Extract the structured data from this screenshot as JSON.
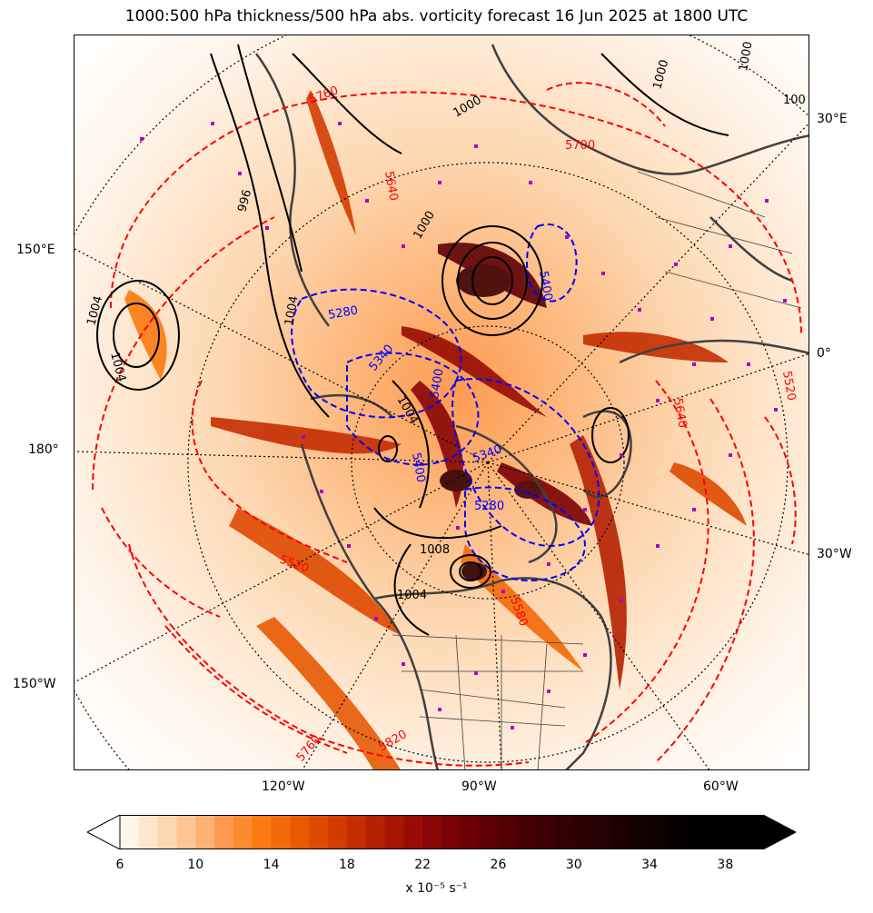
{
  "title": "1000:500 hPa thickness/500 hPa abs. vorticity forecast 16 Jun 2025 at 1800 UTC",
  "map": {
    "projection": "north-polar-stereographic",
    "filled_field": "500 hPa absolute vorticity",
    "contour_fields": [
      "1000:500 hPa thickness (dam)",
      "mean sea level pressure (hPa)"
    ],
    "left_labels": [
      "150°E",
      "180°",
      "150°W"
    ],
    "right_labels": [
      "30°E",
      "0°",
      "30°W"
    ],
    "bottom_labels": [
      "120°W",
      "90°W",
      "60°W"
    ],
    "contour_labels": {
      "pressure": [
        "1000",
        "1000",
        "1000",
        "996",
        "1004",
        "1004",
        "1000",
        "1004",
        "1008",
        "1004",
        "1004",
        "100"
      ],
      "thickness_blue": [
        "5280",
        "5340",
        "5400",
        "5340",
        "5400",
        "5280",
        "5400"
      ],
      "thickness_red": [
        "5760",
        "5640",
        "5700",
        "5520",
        "5640",
        "5580",
        "5760",
        "5820",
        "5520"
      ]
    },
    "colors": {
      "thickness_cold": "#0000ff",
      "thickness_warm": "#ff0000",
      "pressure": "#000000",
      "coastlines": "#404040",
      "station_markers": "#b000c0",
      "graticule": "#000000"
    }
  },
  "colorbar": {
    "ticks": [
      "6",
      "10",
      "14",
      "18",
      "22",
      "26",
      "30",
      "34",
      "38"
    ],
    "label": "x 10⁻⁵ s⁻¹",
    "min": 6,
    "max": 40,
    "step": 1,
    "extend": "both",
    "colors": [
      "#fff5eb",
      "#fee6ce",
      "#fdd7b0",
      "#fdc591",
      "#fdb173",
      "#fd9a4f",
      "#fd8a2f",
      "#fb7a12",
      "#f26a0a",
      "#e85a05",
      "#de4a02",
      "#d23c02",
      "#c42e02",
      "#b52203",
      "#a61603",
      "#970d04",
      "#880605",
      "#7a0206",
      "#6c0106",
      "#5e0106",
      "#520105",
      "#470104",
      "#3d0103",
      "#340102",
      "#2b0101",
      "#230101",
      "#1c0000",
      "#150000",
      "#0e0000",
      "#080000",
      "#030000",
      "#000000",
      "#000000",
      "#000000"
    ]
  }
}
